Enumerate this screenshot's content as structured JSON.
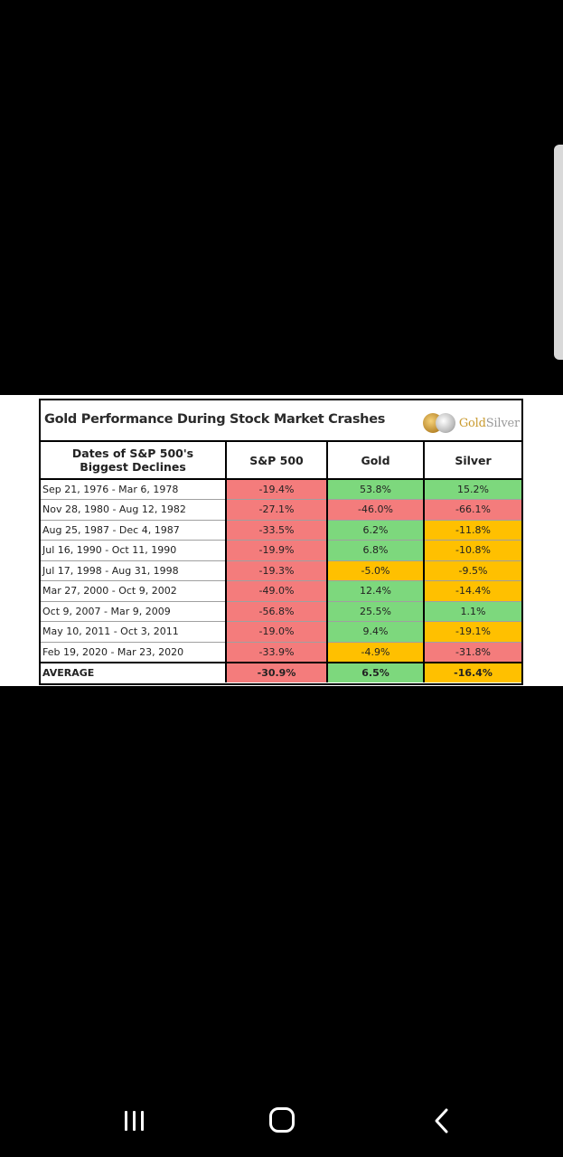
{
  "table": {
    "title": "Gold Performance During Stock Market Crashes",
    "logo": {
      "gold_word": "Gold",
      "silver_word": "Silver"
    },
    "headers": {
      "dates_line1": "Dates of S&P 500's",
      "dates_line2": "Biggest Declines",
      "sp500": "S&P 500",
      "gold": "Gold",
      "silver": "Silver"
    },
    "rows": [
      {
        "dates": "Sep 21, 1976 - Mar 6, 1978",
        "sp500": "-19.4%",
        "gold": "53.8%",
        "silver": "15.2%"
      },
      {
        "dates": "Nov 28, 1980 - Aug 12, 1982",
        "sp500": "-27.1%",
        "gold": "-46.0%",
        "silver": "-66.1%"
      },
      {
        "dates": "Aug 25, 1987 - Dec 4, 1987",
        "sp500": "-33.5%",
        "gold": "6.2%",
        "silver": "-11.8%"
      },
      {
        "dates": "Jul 16, 1990 - Oct 11, 1990",
        "sp500": "-19.9%",
        "gold": "6.8%",
        "silver": "-10.8%"
      },
      {
        "dates": "Jul 17, 1998 - Aug 31, 1998",
        "sp500": "-19.3%",
        "gold": "-5.0%",
        "silver": "-9.5%"
      },
      {
        "dates": "Mar 27, 2000 - Oct 9, 2002",
        "sp500": "-49.0%",
        "gold": "12.4%",
        "silver": "-14.4%"
      },
      {
        "dates": "Oct 9, 2007 - Mar 9, 2009",
        "sp500": "-56.8%",
        "gold": "25.5%",
        "silver": "1.1%"
      },
      {
        "dates": "May 10, 2011 - Oct 3, 2011",
        "sp500": "-19.0%",
        "gold": "9.4%",
        "silver": "-19.1%"
      },
      {
        "dates": "Feb 19, 2020 - Mar 23, 2020",
        "sp500": "-33.9%",
        "gold": "-4.9%",
        "silver": "-31.8%"
      }
    ],
    "average": {
      "label": "AVERAGE",
      "sp500": "-30.9%",
      "gold": "6.5%",
      "silver": "-16.4%"
    }
  },
  "colors": {
    "negative": "#f47c7c",
    "positive": "#7dd87d",
    "mild_negative": "#ffc000",
    "background": "#000000"
  },
  "navigation": {
    "recents_icon": "recents-icon",
    "home_icon": "home-icon",
    "back_icon": "back-icon"
  }
}
